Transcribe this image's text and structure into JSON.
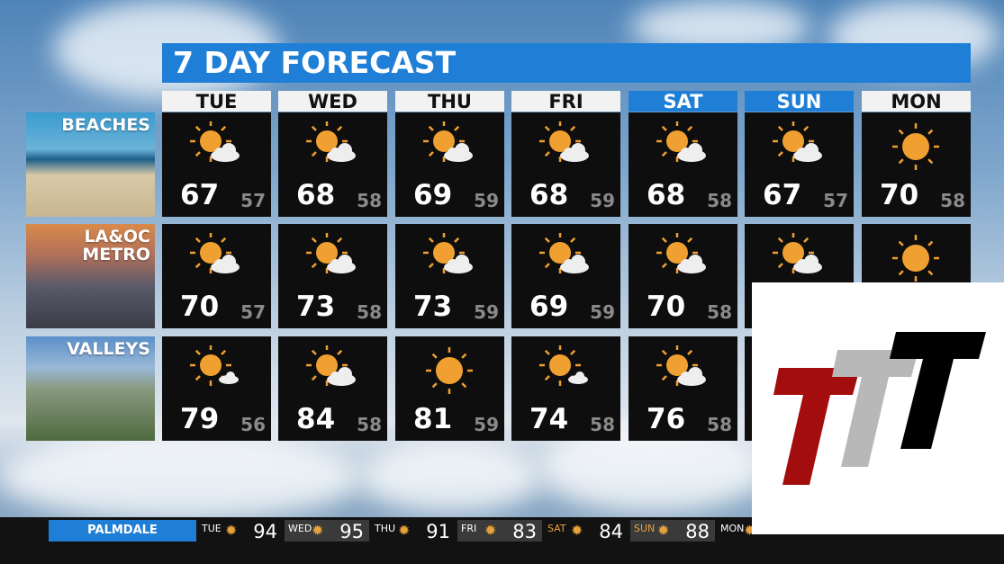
{
  "title": "7 DAY FORECAST",
  "days": [
    {
      "label": "TUE",
      "weekend": false
    },
    {
      "label": "WED",
      "weekend": false
    },
    {
      "label": "THU",
      "weekend": false
    },
    {
      "label": "FRI",
      "weekend": false
    },
    {
      "label": "SAT",
      "weekend": true
    },
    {
      "label": "SUN",
      "weekend": true
    },
    {
      "label": "MON",
      "weekend": false
    }
  ],
  "regions": [
    {
      "label": "BEACHES",
      "cells": [
        {
          "hi": "67",
          "lo": "57",
          "icon": "partly-sunny"
        },
        {
          "hi": "68",
          "lo": "58",
          "icon": "partly-sunny"
        },
        {
          "hi": "69",
          "lo": "59",
          "icon": "partly-sunny"
        },
        {
          "hi": "68",
          "lo": "59",
          "icon": "partly-sunny"
        },
        {
          "hi": "68",
          "lo": "58",
          "icon": "partly-sunny"
        },
        {
          "hi": "67",
          "lo": "57",
          "icon": "partly-sunny"
        },
        {
          "hi": "70",
          "lo": "58",
          "icon": "sunny"
        }
      ]
    },
    {
      "label": "LA&OC\nMETRO",
      "cells": [
        {
          "hi": "70",
          "lo": "57",
          "icon": "partly-sunny"
        },
        {
          "hi": "73",
          "lo": "58",
          "icon": "partly-sunny"
        },
        {
          "hi": "73",
          "lo": "59",
          "icon": "partly-sunny"
        },
        {
          "hi": "69",
          "lo": "59",
          "icon": "partly-sunny"
        },
        {
          "hi": "70",
          "lo": "58",
          "icon": "partly-sunny"
        },
        {
          "hi": "",
          "lo": "",
          "icon": "partly-sunny"
        },
        {
          "hi": "",
          "lo": "",
          "icon": "sunny"
        }
      ]
    },
    {
      "label": "VALLEYS",
      "cells": [
        {
          "hi": "79",
          "lo": "56",
          "icon": "mostly-sunny"
        },
        {
          "hi": "84",
          "lo": "58",
          "icon": "partly-sunny"
        },
        {
          "hi": "81",
          "lo": "59",
          "icon": "sunny"
        },
        {
          "hi": "74",
          "lo": "58",
          "icon": "mostly-sunny"
        },
        {
          "hi": "76",
          "lo": "58",
          "icon": "partly-sunny"
        },
        {
          "hi": "",
          "lo": "",
          "icon": ""
        },
        {
          "hi": "",
          "lo": "",
          "icon": ""
        }
      ]
    }
  ],
  "ticker": {
    "city": "PALMDALE",
    "items": [
      {
        "day": "TUE",
        "temp": "94"
      },
      {
        "day": "WED",
        "temp": "95"
      },
      {
        "day": "THU",
        "temp": "91"
      },
      {
        "day": "FRI",
        "temp": "83"
      },
      {
        "day": "SAT",
        "temp": "84"
      },
      {
        "day": "SUN",
        "temp": "88"
      },
      {
        "day": "MON",
        "temp": ""
      }
    ]
  },
  "colors": {
    "accent": "#1f7fd6",
    "sun": "#f0a030",
    "logo_red": "#a30d0d",
    "logo_gray": "#b8b8b8",
    "logo_black": "#000000"
  }
}
